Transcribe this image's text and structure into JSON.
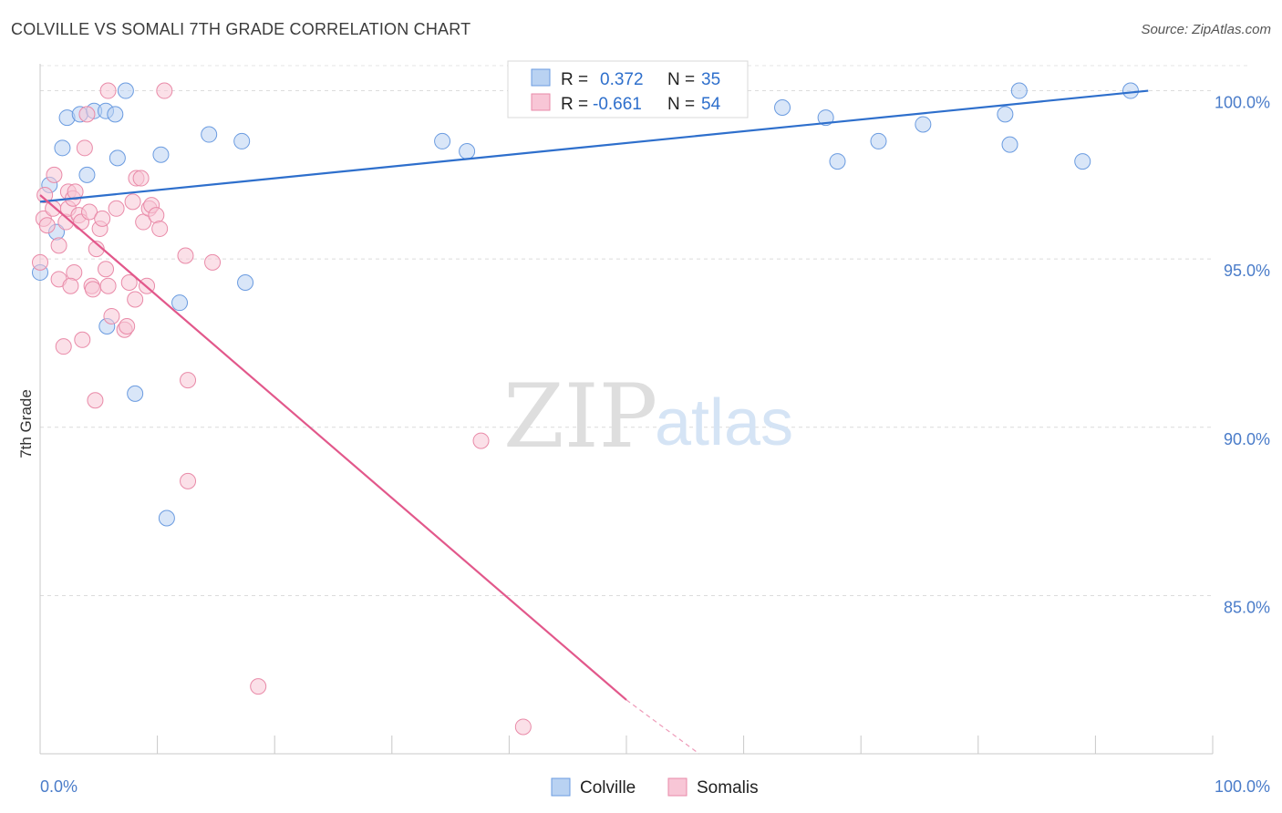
{
  "title": "COLVILLE VS SOMALI 7TH GRADE CORRELATION CHART",
  "source": "Source: ZipAtlas.com",
  "chart_data": {
    "type": "scatter",
    "ylabel": "7th Grade",
    "xlim": [
      0,
      100
    ],
    "ylim": [
      80.3,
      100.8
    ],
    "x_tick_labels": [
      "0.0%",
      "100.0%"
    ],
    "y_ticks": [
      85,
      90,
      95,
      100
    ],
    "y_tick_labels": [
      "85.0%",
      "90.0%",
      "95.0%",
      "100.0%"
    ],
    "grid": true,
    "watermark": {
      "zip": "ZIP",
      "atlas": "atlas"
    },
    "legend_top": [
      {
        "r_label": "R = ",
        "r_value": "0.372",
        "n_label": "N = ",
        "n_value": "35"
      },
      {
        "r_label": "R = ",
        "r_value": "-0.661",
        "n_label": "N = ",
        "n_value": "54"
      }
    ],
    "series": [
      {
        "name": "Colville",
        "color": "#6a9be0",
        "fill": "#b9d2f2",
        "line_color": "#2e6fcc",
        "trend": {
          "x0": 0,
          "y0": 96.7,
          "x1": 94.5,
          "y1": 100.0,
          "dashed_to": null
        },
        "points": [
          [
            0.0,
            94.6
          ],
          [
            0.8,
            97.2
          ],
          [
            1.4,
            95.8
          ],
          [
            1.9,
            98.3
          ],
          [
            2.3,
            99.2
          ],
          [
            3.4,
            99.3
          ],
          [
            4.0,
            97.5
          ],
          [
            4.6,
            99.4
          ],
          [
            5.6,
            99.4
          ],
          [
            6.4,
            99.3
          ],
          [
            6.6,
            98.0
          ],
          [
            7.3,
            100.0
          ],
          [
            5.7,
            93.0
          ],
          [
            8.1,
            91.0
          ],
          [
            10.3,
            98.1
          ],
          [
            10.8,
            87.3
          ],
          [
            11.9,
            93.7
          ],
          [
            14.4,
            98.7
          ],
          [
            17.2,
            98.5
          ],
          [
            17.5,
            94.3
          ],
          [
            34.3,
            98.5
          ],
          [
            36.4,
            98.2
          ],
          [
            40.8,
            100.0
          ],
          [
            48.4,
            100.0
          ],
          [
            53.2,
            100.0
          ],
          [
            63.3,
            99.5
          ],
          [
            67.0,
            99.2
          ],
          [
            68.0,
            97.9
          ],
          [
            71.5,
            98.5
          ],
          [
            75.3,
            99.0
          ],
          [
            82.3,
            99.3
          ],
          [
            82.7,
            98.4
          ],
          [
            83.5,
            100.0
          ],
          [
            88.9,
            97.9
          ],
          [
            93.0,
            100.0
          ]
        ]
      },
      {
        "name": "Somalis",
        "color": "#e98aa8",
        "fill": "#f8c6d6",
        "line_color": "#e2588b",
        "trend": {
          "x0": 0,
          "y0": 96.9,
          "x1": 50.0,
          "y1": 81.9,
          "dashed_to": [
            56.2,
            80.3
          ]
        },
        "points": [
          [
            0.0,
            94.9
          ],
          [
            0.3,
            96.2
          ],
          [
            0.6,
            96.0
          ],
          [
            1.1,
            96.5
          ],
          [
            1.2,
            97.5
          ],
          [
            1.6,
            95.4
          ],
          [
            1.6,
            94.4
          ],
          [
            2.0,
            92.4
          ],
          [
            2.2,
            96.1
          ],
          [
            2.4,
            97.0
          ],
          [
            2.4,
            96.5
          ],
          [
            2.8,
            96.8
          ],
          [
            2.9,
            94.6
          ],
          [
            3.0,
            97.0
          ],
          [
            3.3,
            96.3
          ],
          [
            3.5,
            96.1
          ],
          [
            3.6,
            92.6
          ],
          [
            3.8,
            98.3
          ],
          [
            4.0,
            99.3
          ],
          [
            4.2,
            96.4
          ],
          [
            4.4,
            94.2
          ],
          [
            4.5,
            94.1
          ],
          [
            4.7,
            90.8
          ],
          [
            4.8,
            95.3
          ],
          [
            5.1,
            95.9
          ],
          [
            5.3,
            96.2
          ],
          [
            5.6,
            94.7
          ],
          [
            5.8,
            94.2
          ],
          [
            5.8,
            100.0
          ],
          [
            6.1,
            93.3
          ],
          [
            6.5,
            96.5
          ],
          [
            7.2,
            92.9
          ],
          [
            7.4,
            93.0
          ],
          [
            7.6,
            94.3
          ],
          [
            7.9,
            96.7
          ],
          [
            8.1,
            93.8
          ],
          [
            8.2,
            97.4
          ],
          [
            8.6,
            97.4
          ],
          [
            8.8,
            96.1
          ],
          [
            9.1,
            94.2
          ],
          [
            9.3,
            96.5
          ],
          [
            9.5,
            96.6
          ],
          [
            9.9,
            96.3
          ],
          [
            10.2,
            95.9
          ],
          [
            10.6,
            100.0
          ],
          [
            12.4,
            95.1
          ],
          [
            12.6,
            91.4
          ],
          [
            12.6,
            88.4
          ],
          [
            14.7,
            94.9
          ],
          [
            18.6,
            82.3
          ],
          [
            37.6,
            89.6
          ],
          [
            41.2,
            81.1
          ],
          [
            0.4,
            96.9
          ],
          [
            2.6,
            94.2
          ]
        ]
      }
    ]
  }
}
